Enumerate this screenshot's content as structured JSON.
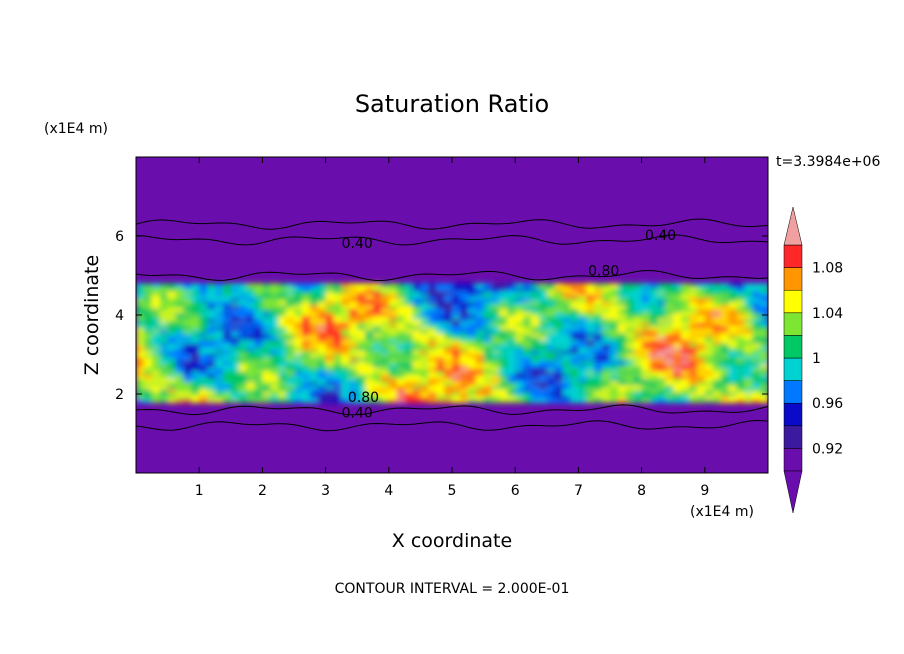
{
  "chart_data": {
    "type": "heatmap",
    "title": "Saturation Ratio",
    "xlabel": "X coordinate",
    "ylabel": "Z coordinate",
    "x_units": "(x1E4 m)",
    "y_units": "(x1E4 m)",
    "time_label": "t=3.3984e+06",
    "footer": "CONTOUR INTERVAL = 2.000E-01",
    "xlim": [
      0,
      10
    ],
    "ylim": [
      0,
      8
    ],
    "x_ticks": [
      1,
      2,
      3,
      4,
      5,
      6,
      7,
      8,
      9
    ],
    "y_ticks": [
      2,
      4,
      6
    ],
    "colorbar": {
      "levels": [
        0.9,
        0.92,
        0.94,
        0.96,
        0.98,
        1.0,
        1.02,
        1.04,
        1.06,
        1.08,
        1.1
      ],
      "tick_labels": [
        "0.92",
        "0.96",
        "1",
        "1.04",
        "1.08"
      ],
      "tick_values": [
        0.92,
        0.96,
        1.0,
        1.04,
        1.08
      ],
      "colors": [
        "#6a0dad",
        "#3b1aa0",
        "#0a0ac8",
        "#0078ff",
        "#00d2d2",
        "#00c864",
        "#7de632",
        "#ffff00",
        "#ff9600",
        "#ff2828",
        "#f0a0a0"
      ],
      "extend": "both"
    },
    "contour_labels": [
      {
        "text": "0.40",
        "x": 3.5,
        "z": 5.7
      },
      {
        "text": "0.40",
        "x": 8.3,
        "z": 5.9
      },
      {
        "text": "0.80",
        "x": 7.4,
        "z": 5.0
      },
      {
        "text": "0.80",
        "x": 3.6,
        "z": 1.8
      },
      {
        "text": "0.40",
        "x": 3.5,
        "z": 1.4
      }
    ],
    "contour_levels_z": [
      6.3,
      5.9,
      5.0,
      1.6,
      1.2
    ],
    "moist_layer_z": [
      1.8,
      4.8
    ],
    "background_value": "<0.90"
  }
}
